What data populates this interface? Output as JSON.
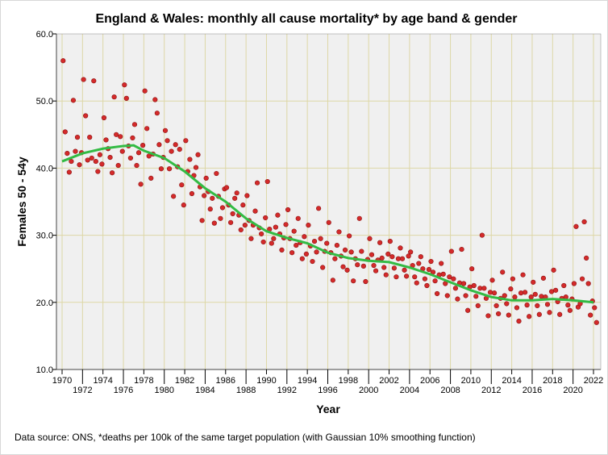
{
  "chart_data": {
    "type": "scatter",
    "title": "England & Wales: monthly all cause mortality* by age band & gender",
    "xlabel": "Year",
    "ylabel": "Females 50 - 54y",
    "footnote": "Data source: ONS, *deaths per 100k of the same target population (with Gaussian 10% smoothing function)",
    "xlim": [
      1969.5,
      2022.7
    ],
    "ylim": [
      10,
      60
    ],
    "x_ticks": [
      1970,
      1972,
      1974,
      1976,
      1978,
      1980,
      1982,
      1984,
      1986,
      1988,
      1990,
      1992,
      1994,
      1996,
      1998,
      2000,
      2002,
      2004,
      2006,
      2008,
      2010,
      2012,
      2014,
      2016,
      2018,
      2020,
      2022
    ],
    "y_ticks": [
      "10.0",
      "20.0",
      "30.0",
      "40.0",
      "50.0",
      "60.0"
    ],
    "grid": true,
    "colors": {
      "points": "#d42a2a",
      "point_edge": "#8a1010",
      "smooth": "#33bb44",
      "plot_bg": "#f0f0f0",
      "grid": "#ddd7a6"
    },
    "points_by_year": {
      "1970": [
        56,
        45.4,
        42.2,
        39.4,
        41
      ],
      "1971": [
        50.1,
        42.5,
        44.6,
        40.5,
        42.3
      ],
      "1972": [
        53.2,
        47.8,
        41.2,
        44.6,
        41.5
      ],
      "1973": [
        53,
        41,
        39.5,
        42,
        40.6
      ],
      "1974": [
        47.5,
        44.2,
        42.9,
        41.6,
        39.3
      ],
      "1975": [
        50.6,
        45,
        40.4,
        44.7,
        42.5
      ],
      "1976": [
        52.4,
        50.4,
        43.3,
        41.5,
        44.5
      ],
      "1977": [
        46.5,
        40.4,
        42.3,
        37.6,
        43.4
      ],
      "1978": [
        51.5,
        45.9,
        41.8,
        38.5,
        42.1
      ],
      "1979": [
        50.2,
        48.2,
        43.5,
        39.9,
        41.6
      ],
      "1980": [
        45.6,
        44.1,
        39.9,
        42.5,
        35.8
      ],
      "1981": [
        43.5,
        40.2,
        42.8,
        37.5,
        34.5
      ],
      "1982": [
        44.1,
        39.5,
        41.3,
        36.2,
        38.9
      ],
      "1983": [
        40.1,
        42,
        37.2,
        32.2,
        35.9
      ],
      "1984": [
        38.5,
        36.5,
        33.9,
        35.5,
        31.8
      ],
      "1985": [
        39.2,
        35.8,
        32.5,
        34.1,
        36.9
      ],
      "1986": [
        37.1,
        34.5,
        31.9,
        33.2,
        35.5
      ],
      "1987": [
        36.3,
        33,
        30.8,
        34.5,
        31.5
      ],
      "1988": [
        35.9,
        32.2,
        29.5,
        31.5,
        33.6
      ],
      "1989": [
        37.8,
        31.1,
        30.2,
        29,
        32.6
      ],
      "1990": [
        38,
        30.9,
        28.8,
        29.5,
        31.2
      ],
      "1991": [
        33,
        30.2,
        27.8,
        29.6,
        31.6
      ],
      "1992": [
        33.8,
        29.5,
        27.4,
        30.6,
        28.5
      ],
      "1993": [
        32.5,
        28.9,
        26.5,
        29.8,
        27.2
      ],
      "1994": [
        31.5,
        28.4,
        26.1,
        29.1,
        27.5
      ],
      "1995": [
        34,
        29.5,
        25.2,
        27.6,
        28.8
      ],
      "1996": [
        31.9,
        27.4,
        23.3,
        26.5,
        28.5
      ],
      "1997": [
        30.5,
        26.9,
        25.3,
        27.8,
        24.8
      ],
      "1998": [
        29.9,
        27.5,
        23.2,
        26.5,
        25.6
      ],
      "1999": [
        32.5,
        27.6,
        25.4,
        23.1,
        26.4
      ],
      "2000": [
        29.5,
        27.1,
        25.5,
        24.7,
        26.3
      ],
      "2001": [
        28.9,
        26.6,
        25.2,
        24.1,
        27.2
      ],
      "2002": [
        29.1,
        26.8,
        25.1,
        23.8,
        26.5
      ],
      "2003": [
        28.1,
        26.5,
        24.8,
        23.9,
        26.9
      ],
      "2004": [
        27.5,
        25.5,
        23.8,
        22.9,
        25.8
      ],
      "2005": [
        26.8,
        25,
        23.5,
        22.5,
        24.9
      ],
      "2006": [
        26.1,
        24.5,
        23.2,
        21.3,
        24.1
      ],
      "2007": [
        25.8,
        24.2,
        22.8,
        21,
        23.8
      ],
      "2008": [
        27.6,
        23.5,
        22.1,
        20.5,
        22.9
      ],
      "2009": [
        27.9,
        22.8,
        21,
        18.8,
        22.3
      ],
      "2010": [
        25,
        22.5,
        20.9,
        19.5,
        22.1
      ],
      "2011": [
        30,
        22.1,
        20.6,
        18,
        21.5
      ],
      "2012": [
        23.3,
        21.4,
        19.5,
        18.3,
        20.6
      ],
      "2013": [
        24.5,
        21,
        19.8,
        18.1,
        22
      ],
      "2014": [
        23.5,
        20.8,
        19.2,
        17.2,
        21.4
      ],
      "2015": [
        24.1,
        21.5,
        19.6,
        17.9,
        20.8
      ],
      "2016": [
        23,
        21.2,
        19.5,
        18.2,
        20.9
      ],
      "2017": [
        23.6,
        20.8,
        19.7,
        18.5,
        21.6
      ],
      "2018": [
        24.8,
        21.8,
        20.1,
        18.2,
        20.6
      ],
      "2019": [
        22.5,
        20.8,
        19.6,
        18.8,
        20.5
      ],
      "2020": [
        22.8,
        31.3,
        19.3,
        19.8,
        23.5
      ],
      "2021": [
        32,
        26.6,
        22.8,
        18.1,
        20.2
      ],
      "2022": [
        19.2,
        17
      ]
    },
    "smooth_line": {
      "x": [
        1970,
        1972,
        1974,
        1976,
        1977,
        1978,
        1980,
        1982,
        1984,
        1986,
        1988,
        1990,
        1992,
        1994,
        1996,
        1998,
        2000,
        2002,
        2004,
        2006,
        2008,
        2010,
        2012,
        2014,
        2016,
        2018,
        2020,
        2022
      ],
      "y": [
        41,
        42.2,
        42.9,
        43.3,
        43.4,
        42.6,
        41.5,
        39.5,
        37,
        35,
        32.5,
        30.6,
        29.6,
        28.8,
        27.4,
        26.6,
        26.2,
        26,
        25.2,
        24.2,
        23,
        21.8,
        20.8,
        20.3,
        20.3,
        20.5,
        20.3,
        20
      ]
    }
  }
}
